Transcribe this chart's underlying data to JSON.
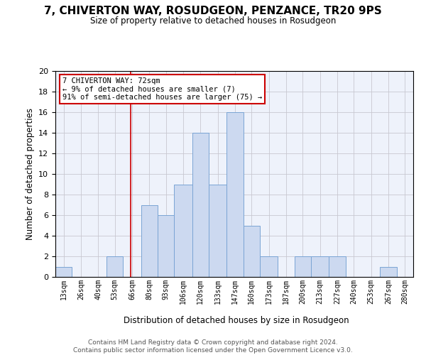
{
  "title": "7, CHIVERTON WAY, ROSUDGEON, PENZANCE, TR20 9PS",
  "subtitle": "Size of property relative to detached houses in Rosudgeon",
  "xlabel": "Distribution of detached houses by size in Rosudgeon",
  "ylabel": "Number of detached properties",
  "bin_labels": [
    "13sqm",
    "26sqm",
    "40sqm",
    "53sqm",
    "66sqm",
    "80sqm",
    "93sqm",
    "106sqm",
    "120sqm",
    "133sqm",
    "147sqm",
    "160sqm",
    "173sqm",
    "187sqm",
    "200sqm",
    "213sqm",
    "227sqm",
    "240sqm",
    "253sqm",
    "267sqm",
    "280sqm"
  ],
  "bin_edges": [
    13,
    26,
    40,
    53,
    66,
    80,
    93,
    106,
    120,
    133,
    147,
    160,
    173,
    187,
    200,
    213,
    227,
    240,
    253,
    267,
    280,
    293
  ],
  "counts": [
    1,
    0,
    0,
    2,
    0,
    7,
    6,
    9,
    14,
    9,
    16,
    5,
    2,
    0,
    2,
    2,
    2,
    0,
    0,
    1,
    0
  ],
  "bar_color": "#ccd9f0",
  "bar_edge_color": "#7aa4d4",
  "grid_color": "#c8c8d0",
  "vline_x": 72,
  "vline_color": "#cc0000",
  "annotation_box_color": "#cc0000",
  "annotation_text": "7 CHIVERTON WAY: 72sqm\n← 9% of detached houses are smaller (7)\n91% of semi-detached houses are larger (75) →",
  "ylim": [
    0,
    20
  ],
  "yticks": [
    0,
    2,
    4,
    6,
    8,
    10,
    12,
    14,
    16,
    18,
    20
  ],
  "footer": "Contains HM Land Registry data © Crown copyright and database right 2024.\nContains public sector information licensed under the Open Government Licence v3.0.",
  "background_color": "#eef2fb"
}
